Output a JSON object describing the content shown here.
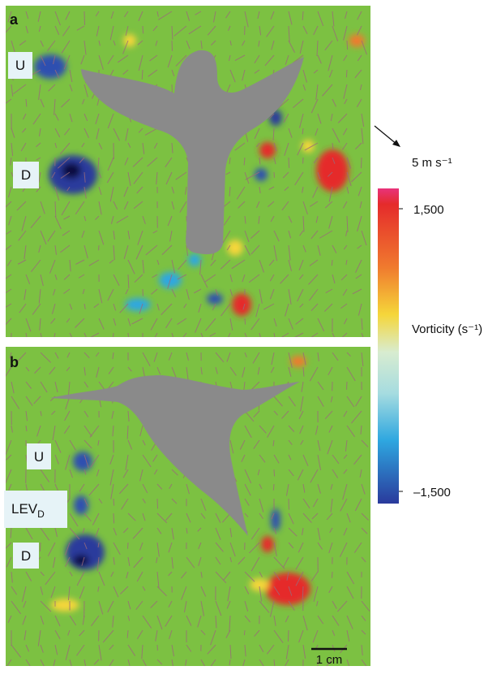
{
  "panels": [
    {
      "label": "a",
      "annotations": [
        "U",
        "D"
      ]
    },
    {
      "label": "b",
      "annotations": [
        "U",
        {
          "text": "LEV",
          "subscript": "D"
        },
        "D"
      ]
    }
  ],
  "scale_arrow": "5 m s⁻¹",
  "scale_bar": "1 cm",
  "colorbar": {
    "label": "Vorticity (s⁻¹)",
    "ticks": [
      {
        "value": 1500,
        "label": "1,500"
      },
      {
        "value": -1500,
        "label": "–1,500"
      }
    ]
  }
}
